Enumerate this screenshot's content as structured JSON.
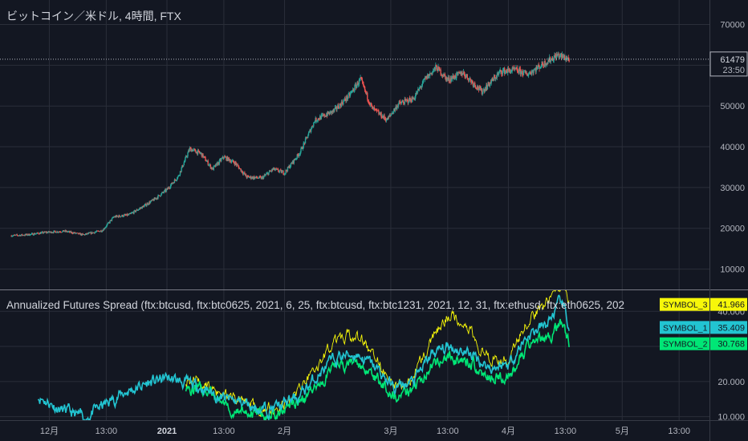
{
  "chart_data": [
    {
      "type": "candlestick",
      "title": "ビットコイン／米ドル, 4時間, FTX",
      "yticks": [
        10000,
        20000,
        30000,
        40000,
        50000,
        60000,
        70000
      ],
      "ylim": [
        5000,
        76000
      ],
      "last_price": "61479",
      "countdown": "23:50",
      "x": [
        "2020-11-21",
        "2020-11-25",
        "2020-11-30",
        "2020-12-05",
        "2020-12-10",
        "2020-12-15",
        "2020-12-18",
        "2020-12-22",
        "2020-12-26",
        "2020-12-29",
        "2021-01-01",
        "2021-01-04",
        "2021-01-07",
        "2021-01-10",
        "2021-01-13",
        "2021-01-16",
        "2021-01-19",
        "2021-01-22",
        "2021-01-26",
        "2021-01-29",
        "2021-02-01",
        "2021-02-05",
        "2021-02-09",
        "2021-02-14",
        "2021-02-18",
        "2021-02-21",
        "2021-02-24",
        "2021-02-28",
        "2021-03-03",
        "2021-03-07",
        "2021-03-10",
        "2021-03-13",
        "2021-03-16",
        "2021-03-20",
        "2021-03-25",
        "2021-03-30",
        "2021-04-03",
        "2021-04-06",
        "2021-04-10",
        "2021-04-14",
        "2021-04-17"
      ],
      "close": [
        18200,
        18400,
        19000,
        19300,
        18400,
        19500,
        22800,
        23300,
        25500,
        27300,
        29500,
        32800,
        39500,
        38300,
        34500,
        37500,
        36000,
        32600,
        32300,
        34500,
        33600,
        38500,
        46500,
        48800,
        52500,
        56500,
        49500,
        46600,
        50500,
        51800,
        56500,
        59500,
        56400,
        58200,
        53500,
        58500,
        58800,
        57800,
        60200,
        62500,
        61479
      ],
      "colors": {
        "up": "#26a69a",
        "down": "#ef5350"
      }
    },
    {
      "type": "line",
      "title": "Annualized Futures Spread (ftx:btcusd, ftx:btc0625, 2021, 6, 25, ftx:btcusd, ftx:btc1231, 2021, 12, 31, ftx:ethusd, ftx:eth0625, 202",
      "yticks": [
        10,
        20,
        30,
        40
      ],
      "ytick_labels": [
        "10.000",
        "20.000",
        "30.000",
        "40.000"
      ],
      "ylim": [
        9,
        46
      ],
      "x": [
        "2020-11-28",
        "2020-12-04",
        "2020-12-10",
        "2020-12-15",
        "2020-12-20",
        "2020-12-27",
        "2021-01-01",
        "2021-01-06",
        "2021-01-11",
        "2021-01-16",
        "2021-01-21",
        "2021-01-26",
        "2021-01-31",
        "2021-02-05",
        "2021-02-10",
        "2021-02-15",
        "2021-02-20",
        "2021-02-25",
        "2021-03-02",
        "2021-03-07",
        "2021-03-12",
        "2021-03-17",
        "2021-03-22",
        "2021-03-27",
        "2021-04-01",
        "2021-04-06",
        "2021-04-11",
        "2021-04-15",
        "2021-04-17"
      ],
      "series": [
        {
          "name": "SYMBOL_1",
          "color": "#22c4d1",
          "last": "35.409",
          "values": [
            16,
            12,
            9.5,
            13,
            16.5,
            19.5,
            21,
            19.5,
            18,
            15,
            14,
            12,
            13,
            16,
            22,
            27,
            28,
            24,
            18,
            20,
            28,
            30,
            28,
            24,
            25,
            33,
            36,
            43,
            35.4
          ]
        },
        {
          "name": "SYMBOL_2",
          "color": "#00e676",
          "last": "30.768",
          "values": [
            null,
            null,
            null,
            null,
            null,
            null,
            null,
            18.5,
            17,
            13,
            12.5,
            10.5,
            11,
            14,
            19.5,
            24.5,
            25.5,
            21,
            16,
            18,
            25,
            27,
            25.5,
            21,
            22,
            29,
            32,
            37,
            30.8
          ]
        },
        {
          "name": "SYMBOL_3",
          "color": "#f7f709",
          "last": "41.966",
          "values": [
            null,
            null,
            null,
            null,
            null,
            null,
            null,
            20.5,
            19,
            15.5,
            14.5,
            12,
            13,
            17,
            25,
            32,
            33,
            27,
            19,
            22,
            33,
            40,
            35,
            26,
            27,
            37,
            42,
            48,
            42
          ]
        }
      ]
    }
  ],
  "x_axis": {
    "labels": [
      {
        "t": "2020-12-01",
        "text": "12月",
        "bold": false
      },
      {
        "t": "2020-12-16",
        "text": "13:00",
        "bold": false
      },
      {
        "t": "2021-01-01",
        "text": "2021",
        "bold": true
      },
      {
        "t": "2021-01-16",
        "text": "13:00",
        "bold": false
      },
      {
        "t": "2021-02-01",
        "text": "2月",
        "bold": false
      },
      {
        "t": "2021-03-01",
        "text": "3月",
        "bold": false
      },
      {
        "t": "2021-03-16",
        "text": "13:00",
        "bold": false
      },
      {
        "t": "2021-04-01",
        "text": "4月",
        "bold": false
      },
      {
        "t": "2021-04-16",
        "text": "13:00",
        "bold": false
      },
      {
        "t": "2021-05-01",
        "text": "5月",
        "bold": false
      },
      {
        "t": "2021-05-16",
        "text": "13:00",
        "bold": false
      }
    ]
  }
}
